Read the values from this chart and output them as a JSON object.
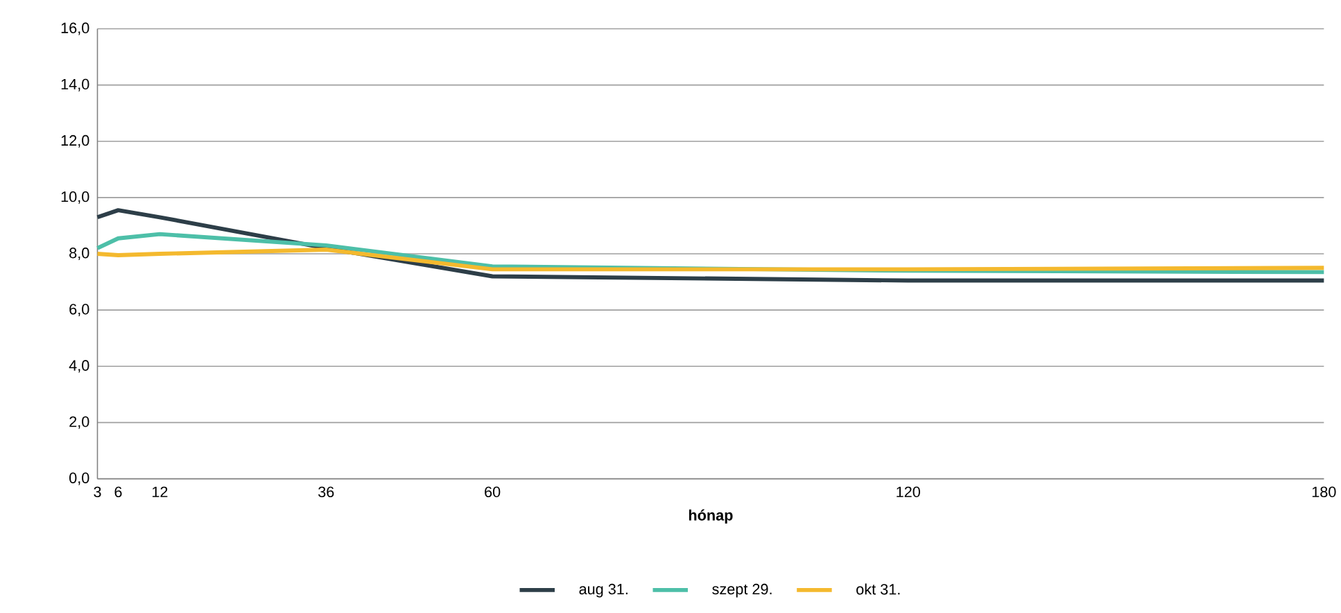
{
  "chart_data": {
    "type": "line",
    "xlabel": "hónap",
    "x": [
      3,
      6,
      12,
      36,
      60,
      120,
      180
    ],
    "series": [
      {
        "name": "aug 31.",
        "color": "#2d3e48",
        "values": [
          9.3,
          9.55,
          9.3,
          8.2,
          7.2,
          7.05,
          7.05
        ]
      },
      {
        "name": "szept 29.",
        "color": "#4dbfa8",
        "values": [
          8.2,
          8.55,
          8.7,
          8.3,
          7.55,
          7.4,
          7.35
        ]
      },
      {
        "name": "okt 31.",
        "color": "#f4b92e",
        "values": [
          8.0,
          7.95,
          8.0,
          8.15,
          7.45,
          7.45,
          7.5
        ]
      }
    ],
    "xlim": [
      3,
      180
    ],
    "xticks": [
      3,
      6,
      12,
      36,
      60,
      120,
      180
    ],
    "ylim": [
      0,
      16
    ],
    "yticks": [
      {
        "value": 0,
        "label": "0,0"
      },
      {
        "value": 2,
        "label": "2,0"
      },
      {
        "value": 4,
        "label": "4,0"
      },
      {
        "value": 6,
        "label": "6,0"
      },
      {
        "value": 8,
        "label": "8,0"
      },
      {
        "value": 10,
        "label": "10,0"
      },
      {
        "value": 12,
        "label": "12,0"
      },
      {
        "value": 14,
        "label": "14,0"
      },
      {
        "value": 16,
        "label": "16,0"
      }
    ],
    "grid": "y",
    "legend": "bottom",
    "marker": "none",
    "line_style": "solid"
  }
}
